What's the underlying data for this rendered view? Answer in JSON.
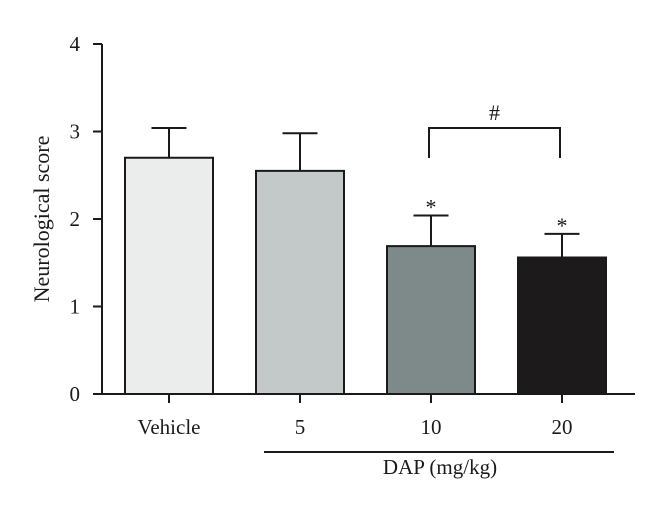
{
  "chart_data": {
    "type": "bar",
    "title": "",
    "xlabel": "",
    "ylabel": "Neurological score",
    "ylim": [
      0,
      4
    ],
    "yticks": [
      0,
      1,
      2,
      3,
      4
    ],
    "grid": false,
    "categories": [
      "Vehicle",
      "5",
      "10",
      "20"
    ],
    "values": [
      2.7,
      2.55,
      1.69,
      1.56
    ],
    "errors": [
      0.34,
      0.43,
      0.35,
      0.27
    ],
    "bar_colors": [
      "#ebeded",
      "#c3c9c8",
      "#7e8a89",
      "#1c1a1b"
    ],
    "group_label": "DAP (mg/kg)",
    "group_categories": [
      "5",
      "10",
      "20"
    ],
    "significance": [
      {
        "category": "10",
        "mark": "*"
      },
      {
        "category": "20",
        "mark": "*"
      }
    ],
    "comparison": {
      "from": "10",
      "to": "20",
      "mark": "#",
      "y": 3.04
    }
  }
}
